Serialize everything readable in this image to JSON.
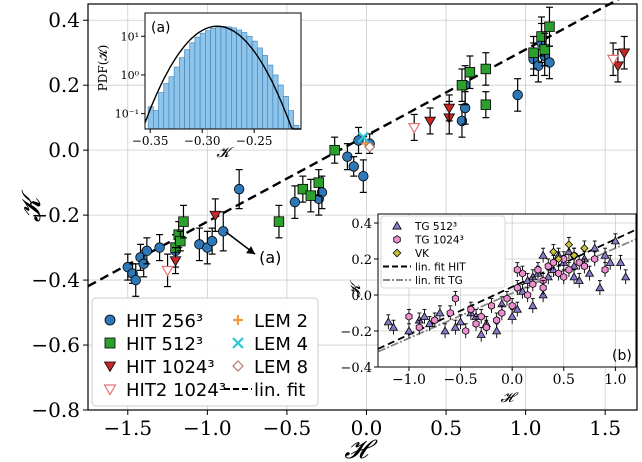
{
  "chart_data": [
    {
      "type": "scatter",
      "xlabel": "𝓗",
      "ylabel": "𝓚",
      "xlim": [
        -1.75,
        1.7
      ],
      "ylim": [
        -0.8,
        0.45
      ],
      "xticks": [
        "−1.5",
        "−1.0",
        "−0.5",
        "0.0",
        "0.5",
        "1.0",
        "1.5"
      ],
      "xtick_values": [
        -1.5,
        -1.0,
        -0.5,
        0.0,
        0.5,
        1.0,
        1.5
      ],
      "yticks": [
        "−0.8",
        "−0.6",
        "−0.4",
        "−0.2",
        "0.0",
        "0.2",
        "0.4"
      ],
      "ytick_values": [
        -0.8,
        -0.6,
        -0.4,
        -0.2,
        0.0,
        0.2,
        0.4
      ],
      "grid": true,
      "legend_position": "bottom-left",
      "annotation": {
        "text": "(a)",
        "arrow_from": [
          -0.7,
          -0.32
        ],
        "arrow_to": [
          -0.92,
          -0.24
        ]
      },
      "fit": {
        "name": "lin. fit",
        "slope": 0.265,
        "intercept": 0.045,
        "color": "#000000",
        "style": "dashed"
      },
      "legend": [
        {
          "label": "HIT 256³",
          "color": "#2e78b7",
          "marker": "circle"
        },
        {
          "label": "HIT 512³",
          "color": "#2ca02c",
          "marker": "square"
        },
        {
          "label": "HIT 1024³",
          "color": "#c62828",
          "marker": "triangle-down"
        },
        {
          "label": "HIT2 1024³",
          "color": "#e57373",
          "marker": "triangle-down-open"
        },
        {
          "label": "LEM 2",
          "color": "#f39c3c",
          "marker": "plus"
        },
        {
          "label": "LEM 4",
          "color": "#2cc8d6",
          "marker": "x"
        },
        {
          "label": "LEM 8",
          "color": "#b5776b",
          "marker": "diamond-open"
        },
        {
          "label": "lin. fit",
          "color": "#000000",
          "marker": "dashed-line"
        }
      ],
      "series": [
        {
          "name": "HIT 256³",
          "points": [
            [
              -1.5,
              -0.36,
              0.04
            ],
            [
              -1.47,
              -0.38,
              0.03
            ],
            [
              -1.45,
              -0.4,
              0.05
            ],
            [
              -1.42,
              -0.33,
              0.04
            ],
            [
              -1.4,
              -0.35,
              0.04
            ],
            [
              -1.38,
              -0.31,
              0.04
            ],
            [
              -1.3,
              -0.3,
              0.04
            ],
            [
              -1.2,
              -0.31,
              0.05
            ],
            [
              -1.05,
              -0.29,
              0.05
            ],
            [
              -1.0,
              -0.3,
              0.05
            ],
            [
              -0.97,
              -0.28,
              0.04
            ],
            [
              -0.9,
              -0.25,
              0.06
            ],
            [
              -0.8,
              -0.12,
              0.06
            ],
            [
              -0.45,
              -0.16,
              0.05
            ],
            [
              -0.3,
              -0.15,
              0.05
            ],
            [
              -0.28,
              -0.13,
              0.05
            ],
            [
              -0.12,
              -0.02,
              0.04
            ],
            [
              -0.08,
              -0.05,
              0.03
            ],
            [
              -0.05,
              0.03,
              0.04
            ],
            [
              -0.02,
              -0.08,
              0.05
            ],
            [
              0.02,
              0.02,
              0.03
            ],
            [
              0.6,
              0.09,
              0.05
            ],
            [
              0.62,
              0.13,
              0.05
            ],
            [
              0.62,
              0.2,
              0.06
            ],
            [
              0.95,
              0.17,
              0.05
            ],
            [
              1.05,
              0.28,
              0.05
            ],
            [
              1.08,
              0.26,
              0.05
            ],
            [
              1.1,
              0.33,
              0.06
            ],
            [
              1.12,
              0.29,
              0.06
            ],
            [
              1.15,
              0.27,
              0.05
            ]
          ]
        },
        {
          "name": "HIT 512³",
          "points": [
            [
              -1.2,
              -0.3,
              0.04
            ],
            [
              -1.18,
              -0.26,
              0.04
            ],
            [
              -1.17,
              -0.28,
              0.03
            ],
            [
              -1.15,
              -0.22,
              0.05
            ],
            [
              -0.55,
              -0.22,
              0.05
            ],
            [
              -0.4,
              -0.12,
              0.04
            ],
            [
              -0.35,
              -0.14,
              0.05
            ],
            [
              -0.3,
              -0.1,
              0.04
            ],
            [
              -0.2,
              -0.0,
              0.04
            ],
            [
              0.6,
              0.2,
              0.05
            ],
            [
              0.65,
              0.24,
              0.05
            ],
            [
              0.75,
              0.14,
              0.04
            ],
            [
              0.75,
              0.25,
              0.05
            ],
            [
              1.05,
              0.3,
              0.05
            ],
            [
              1.1,
              0.35,
              0.06
            ],
            [
              1.12,
              0.31,
              0.05
            ],
            [
              1.15,
              0.38,
              0.06
            ]
          ]
        },
        {
          "name": "HIT 1024³",
          "points": [
            [
              -1.2,
              -0.34,
              0.04
            ],
            [
              -0.95,
              -0.2,
              0.05
            ],
            [
              0.4,
              0.09,
              0.04
            ],
            [
              0.52,
              0.1,
              0.05
            ],
            [
              0.52,
              0.13,
              0.04
            ],
            [
              1.58,
              0.26,
              0.05
            ],
            [
              1.62,
              0.3,
              0.05
            ]
          ]
        },
        {
          "name": "HIT2 1024³",
          "points": [
            [
              -1.25,
              -0.37,
              0.05
            ],
            [
              0.3,
              0.07,
              0.04
            ],
            [
              1.55,
              0.28,
              0.05
            ]
          ]
        },
        {
          "name": "LEM 2",
          "points": [
            [
              0.0,
              0.02,
              0.0
            ]
          ]
        },
        {
          "name": "LEM 4",
          "points": [
            [
              -0.02,
              0.04,
              0.0
            ]
          ]
        },
        {
          "name": "LEM 8",
          "points": [
            [
              0.02,
              0.01,
              0.0
            ]
          ]
        }
      ]
    },
    {
      "type": "histogram",
      "panel_label": "(a)",
      "xlabel": "𝓚",
      "ylabel": "PDF(𝓚)",
      "xlim": [
        -0.355,
        -0.205
      ],
      "ylog": true,
      "xticks": [
        "−0.35",
        "−0.30",
        "−0.25"
      ],
      "xtick_values": [
        -0.35,
        -0.3,
        -0.25
      ],
      "yticks": [
        "10⁻¹",
        "10⁰",
        "10¹"
      ],
      "ytick_values": [
        0.1,
        1,
        10
      ],
      "bar_color": "#8ec4ea",
      "curve_color": "#000000",
      "bins_start": -0.352,
      "bin_width": 0.005,
      "bin_values": [
        0.15,
        0.12,
        0.35,
        0.6,
        0.9,
        1.6,
        2.8,
        4.5,
        6.8,
        9.5,
        12,
        14,
        16,
        17.5,
        18,
        17.5,
        16.5,
        14.5,
        12.5,
        10,
        7.5,
        5,
        3.2,
        1.8,
        1.0,
        0.55,
        0.28,
        0.12,
        0.05,
        0.03
      ]
    },
    {
      "type": "scatter",
      "panel_label": "(b)",
      "xlabel": "𝓗",
      "ylabel": "𝓚",
      "xlim": [
        -1.3,
        1.2
      ],
      "ylim": [
        -0.4,
        0.45
      ],
      "xticks": [
        "−1.0",
        "−0.5",
        "0.0",
        "0.5",
        "1.0"
      ],
      "xtick_values": [
        -1.0,
        -0.5,
        0.0,
        0.5,
        1.0
      ],
      "yticks": [
        "−0.4",
        "−0.2",
        "0.0",
        "0.2",
        "0.4"
      ],
      "ytick_values": [
        -0.4,
        -0.2,
        0.0,
        0.2,
        0.4
      ],
      "grid": true,
      "legend_position": "top-left",
      "legend": [
        {
          "label": "TG 512³",
          "color": "#8a78c8",
          "marker": "triangle-up"
        },
        {
          "label": "TG 1024³",
          "color": "#f08cd0",
          "marker": "hexagon"
        },
        {
          "label": "VK",
          "color": "#c8c23c",
          "marker": "diamond"
        },
        {
          "label": "lin. fit HIT",
          "color": "#000000",
          "marker": "dashed-line"
        },
        {
          "label": "lin. fit TG",
          "color": "#888888",
          "marker": "dashdot-line"
        }
      ],
      "fits": [
        {
          "name": "lin. fit HIT",
          "slope": 0.265,
          "intercept": 0.045
        },
        {
          "name": "lin. fit TG",
          "slope": 0.25,
          "intercept": 0.01
        }
      ],
      "series": [
        {
          "name": "TG 512³",
          "points": [
            [
              -1.2,
              -0.15
            ],
            [
              -1.15,
              -0.18
            ],
            [
              -1.0,
              -0.2
            ],
            [
              -0.9,
              -0.14
            ],
            [
              -0.85,
              -0.12
            ],
            [
              -0.7,
              -0.1
            ],
            [
              -0.55,
              -0.18
            ],
            [
              -0.5,
              -0.15
            ],
            [
              -0.4,
              -0.1
            ],
            [
              -0.3,
              -0.22
            ],
            [
              -0.25,
              -0.16
            ],
            [
              -0.15,
              -0.2
            ],
            [
              -0.1,
              -0.05
            ],
            [
              0.0,
              -0.12
            ],
            [
              0.05,
              -0.08
            ],
            [
              0.1,
              0.02
            ],
            [
              0.15,
              0.08
            ],
            [
              0.2,
              -0.06
            ],
            [
              0.25,
              0.12
            ],
            [
              0.3,
              0.0
            ],
            [
              0.35,
              0.1
            ],
            [
              0.4,
              0.14
            ],
            [
              0.45,
              0.22
            ],
            [
              0.5,
              0.18
            ],
            [
              0.55,
              0.24
            ],
            [
              0.6,
              0.16
            ],
            [
              0.65,
              0.08
            ],
            [
              0.7,
              0.2
            ],
            [
              0.75,
              0.12
            ],
            [
              0.8,
              0.26
            ],
            [
              0.85,
              0.04
            ],
            [
              0.9,
              0.22
            ],
            [
              0.95,
              0.18
            ],
            [
              1.0,
              0.3
            ],
            [
              1.05,
              0.18
            ],
            [
              1.1,
              0.1
            ],
            [
              -0.8,
              -0.16
            ],
            [
              -0.65,
              -0.2
            ],
            [
              -0.35,
              -0.12
            ],
            [
              0.2,
              0.1
            ],
            [
              0.6,
              0.1
            ],
            [
              0.3,
              0.22
            ]
          ]
        },
        {
          "name": "TG 1024³",
          "points": [
            [
              -1.0,
              -0.12
            ],
            [
              -0.9,
              -0.18
            ],
            [
              -0.75,
              -0.14
            ],
            [
              -0.6,
              -0.1
            ],
            [
              -0.55,
              -0.02
            ],
            [
              -0.45,
              -0.2
            ],
            [
              -0.4,
              -0.08
            ],
            [
              -0.35,
              -0.16
            ],
            [
              -0.3,
              -0.12
            ],
            [
              -0.2,
              -0.06
            ],
            [
              -0.15,
              -0.14
            ],
            [
              -0.1,
              -0.1
            ],
            [
              -0.05,
              -0.02
            ],
            [
              0.0,
              -0.06
            ],
            [
              0.05,
              0.04
            ],
            [
              0.1,
              0.12
            ],
            [
              0.15,
              0.0
            ],
            [
              0.2,
              0.06
            ],
            [
              0.25,
              0.14
            ],
            [
              0.3,
              0.08
            ],
            [
              0.35,
              0.16
            ],
            [
              0.4,
              0.18
            ],
            [
              0.45,
              0.12
            ],
            [
              0.5,
              0.2
            ],
            [
              0.55,
              0.14
            ],
            [
              0.6,
              0.22
            ],
            [
              0.65,
              0.18
            ],
            [
              0.7,
              0.16
            ],
            [
              0.8,
              0.2
            ],
            [
              0.9,
              0.14
            ],
            [
              0.3,
              0.04
            ],
            [
              -0.25,
              -0.18
            ],
            [
              0.05,
              0.14
            ],
            [
              0.5,
              0.1
            ]
          ]
        },
        {
          "name": "VK",
          "points": [
            [
              0.4,
              0.24
            ],
            [
              0.45,
              0.2
            ],
            [
              0.55,
              0.28
            ],
            [
              0.6,
              0.22
            ],
            [
              0.7,
              0.26
            ]
          ]
        }
      ]
    }
  ]
}
